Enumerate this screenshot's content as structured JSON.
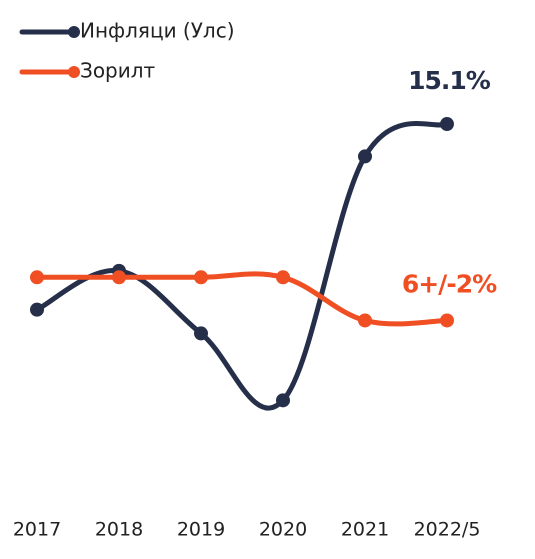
{
  "chart_data": {
    "type": "line",
    "categories": [
      "2017",
      "2018",
      "2019",
      "2020",
      "2021",
      "2022/5"
    ],
    "series": [
      {
        "name": "Инфляци (Улс)",
        "color": "#262f4a",
        "values": [
          6.5,
          8.3,
          5.4,
          2.3,
          13.6,
          15.1
        ],
        "value_labels": [
          null,
          null,
          null,
          null,
          null,
          "15.1%"
        ]
      },
      {
        "name": "Зорилт",
        "color": "#f04e23",
        "values": [
          8,
          8,
          8,
          8,
          6,
          6
        ],
        "value_labels": [
          null,
          null,
          null,
          null,
          null,
          "6+/-2%"
        ]
      }
    ],
    "ylim": [
      0,
      17
    ],
    "legend": "top-left"
  }
}
